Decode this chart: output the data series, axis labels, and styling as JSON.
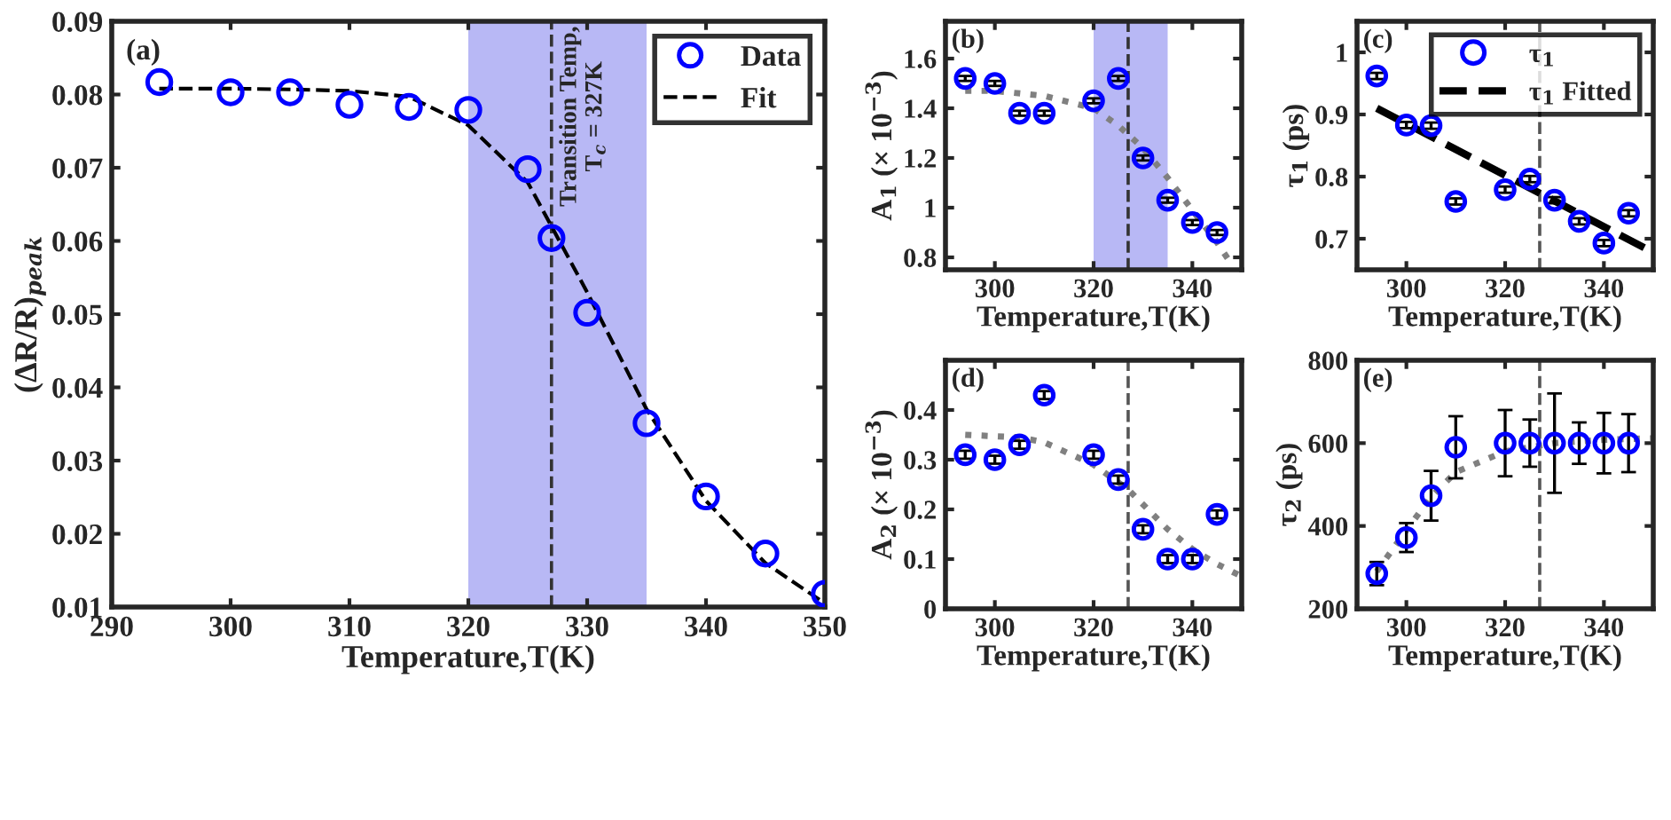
{
  "chart_data": [
    {
      "type": "scatter",
      "title": "(a)",
      "xlabel": "Temperature,T(K)",
      "ylabel": "(ΔR/R)$_{peak}$",
      "xlim": [
        290,
        350
      ],
      "ylim": [
        0.01,
        0.09
      ],
      "xticks": [
        290,
        300,
        310,
        320,
        330,
        340,
        350
      ],
      "yticks": [
        0.01,
        0.02,
        0.03,
        0.04,
        0.05,
        0.06,
        0.07,
        0.08,
        0.09
      ],
      "legend": "top right",
      "grid": false,
      "series": [
        {
          "name": "Data",
          "marker": "circle",
          "color": "#0000ff",
          "x": [
            294,
            300,
            305,
            310,
            315,
            320,
            325,
            327,
            330,
            335,
            340,
            345,
            350
          ],
          "values": [
            0.0817,
            0.0803,
            0.0803,
            0.0786,
            0.0783,
            0.0779,
            0.0698,
            0.0604,
            0.0502,
            0.0351,
            0.0251,
            0.0173,
            0.0118
          ]
        },
        {
          "name": "Fit",
          "type": "line",
          "line_style": "dashed",
          "color": "#000000",
          "x": [
            294,
            300,
            305,
            310,
            315,
            320,
            325,
            327,
            330,
            335,
            340,
            345,
            350
          ],
          "values": [
            0.0808,
            0.0808,
            0.0807,
            0.0805,
            0.0797,
            0.0758,
            0.068,
            0.062,
            0.053,
            0.037,
            0.0245,
            0.016,
            0.0105
          ]
        }
      ],
      "bands": [
        {
          "axis": "x",
          "from": 320,
          "to": 335,
          "color": "#b8b8f5"
        }
      ],
      "ref_lines": [
        {
          "axis": "x",
          "value": 327,
          "color": "#333333",
          "line_style": "dashed"
        }
      ],
      "annotations": [
        {
          "text": "Transition Temp,\nT$_{c}$ = 327K",
          "x": 327,
          "y": 0.09
        }
      ]
    },
    {
      "type": "scatter",
      "title": "(b)",
      "xlabel": "Temperature,T(K)",
      "ylabel": "A$_{1}$ (× 10$^{−3}$)",
      "xlim": [
        290,
        350
      ],
      "ylim": [
        0.75,
        1.75
      ],
      "xticks": [
        300,
        320,
        340
      ],
      "yticks": [
        {
          "value": 0.8,
          "label": "0.8"
        },
        1,
        1.2,
        1.4,
        1.6
      ],
      "grid": false,
      "series": [
        {
          "marker": "circle",
          "color": "#0000ff",
          "x": [
            294,
            300,
            305,
            310,
            320,
            325,
            330,
            335,
            340,
            345
          ],
          "values": [
            1.52,
            1.5,
            1.38,
            1.38,
            1.43,
            1.52,
            1.2,
            1.03,
            0.94,
            0.9
          ],
          "errors": [
            0.01,
            0.01,
            0.01,
            0.01,
            0.01,
            0.01,
            0.01,
            0.01,
            0.01,
            0.01
          ]
        },
        {
          "type": "line",
          "line_style": "dotted",
          "color": "#808080",
          "x": [
            294,
            300,
            310,
            320,
            325,
            330,
            335,
            340,
            345,
            348
          ],
          "values": [
            1.47,
            1.47,
            1.45,
            1.4,
            1.33,
            1.24,
            1.12,
            0.99,
            0.86,
            0.77
          ]
        }
      ],
      "bands": [
        {
          "axis": "x",
          "from": 320,
          "to": 335,
          "color": "#b8b8f5"
        }
      ],
      "ref_lines": [
        {
          "axis": "x",
          "value": 327,
          "color": "#333333",
          "line_style": "dashed"
        }
      ]
    },
    {
      "type": "scatter",
      "title": "(c)",
      "xlabel": "Temperature,T(K)",
      "ylabel": "τ$_{1}$ (ps)",
      "xlim": [
        290,
        350
      ],
      "ylim": [
        0.65,
        1.05
      ],
      "xticks": [
        300,
        320,
        340
      ],
      "yticks": [
        0.7,
        0.8,
        0.9,
        1
      ],
      "legend": "top right",
      "grid": false,
      "series": [
        {
          "name": "τ$_{1}$",
          "marker": "circle",
          "color": "#0000ff",
          "x": [
            294,
            300,
            305,
            310,
            320,
            325,
            330,
            335,
            340,
            345
          ],
          "values": [
            0.962,
            0.883,
            0.882,
            0.76,
            0.779,
            0.796,
            0.762,
            0.728,
            0.693,
            0.741
          ],
          "errors": [
            0.005,
            0.005,
            0.005,
            0.005,
            0.005,
            0.005,
            0.005,
            0.005,
            0.005,
            0.005
          ]
        },
        {
          "name": "τ$_{1}$ Fitted",
          "type": "line",
          "line_style": "dashed",
          "color": "#000000",
          "x": [
            294,
            350
          ],
          "values": [
            0.91,
            0.678
          ]
        }
      ],
      "ref_lines": [
        {
          "axis": "x",
          "value": 327,
          "color": "#555555",
          "line_style": "dashed"
        }
      ]
    },
    {
      "type": "scatter",
      "title": "(d)",
      "xlabel": "Temperature,T(K)",
      "ylabel": "A$_{2}$ (× 10$^{−3}$)",
      "xlim": [
        290,
        350
      ],
      "ylim": [
        0,
        0.5
      ],
      "xticks": [
        300,
        320,
        340
      ],
      "yticks": [
        0,
        0.1,
        0.2,
        0.3,
        0.4
      ],
      "grid": false,
      "series": [
        {
          "marker": "circle",
          "color": "#0000ff",
          "x": [
            294,
            300,
            305,
            310,
            320,
            325,
            330,
            335,
            340,
            345
          ],
          "values": [
            0.31,
            0.3,
            0.33,
            0.43,
            0.31,
            0.26,
            0.16,
            0.1,
            0.1,
            0.19
          ],
          "errors": [
            0.008,
            0.008,
            0.008,
            0.008,
            0.008,
            0.008,
            0.008,
            0.008,
            0.008,
            0.008
          ]
        },
        {
          "type": "line",
          "line_style": "dotted",
          "color": "#808080",
          "x": [
            294,
            305,
            310,
            320,
            327,
            335,
            340,
            345,
            350
          ],
          "values": [
            0.35,
            0.345,
            0.335,
            0.29,
            0.24,
            0.16,
            0.12,
            0.09,
            0.065
          ]
        }
      ],
      "ref_lines": [
        {
          "axis": "x",
          "value": 327,
          "color": "#555555",
          "line_style": "dashed"
        }
      ]
    },
    {
      "type": "scatter",
      "title": "(e)",
      "xlabel": "Temperature,T(K)",
      "ylabel": "τ$_{2}$ (ps)",
      "xlim": [
        290,
        350
      ],
      "ylim": [
        200,
        800
      ],
      "xticks": [
        300,
        320,
        340
      ],
      "yticks": [
        200,
        400,
        600,
        800
      ],
      "grid": false,
      "series": [
        {
          "marker": "circle",
          "color": "#0000ff",
          "x": [
            294,
            300,
            305,
            310,
            320,
            325,
            330,
            335,
            340,
            345
          ],
          "values": [
            285,
            372,
            473,
            590,
            600,
            600,
            600,
            600,
            600,
            600
          ],
          "errors": [
            28,
            35,
            60,
            75,
            80,
            57,
            120,
            50,
            73,
            70
          ]
        },
        {
          "type": "line",
          "line_style": "dotted",
          "color": "#808080",
          "x": [
            294,
            300,
            305,
            310,
            320,
            330,
            340,
            350
          ],
          "values": [
            290,
            390,
            470,
            530,
            580,
            600,
            608,
            612
          ]
        }
      ],
      "ref_lines": [
        {
          "axis": "x",
          "value": 327,
          "color": "#555555",
          "line_style": "dashed"
        }
      ]
    }
  ]
}
